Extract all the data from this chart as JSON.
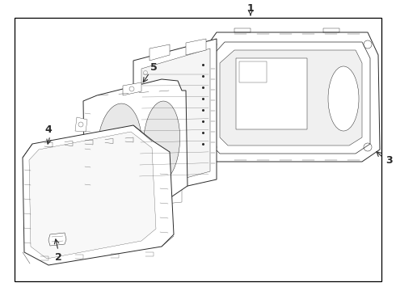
{
  "background_color": "#ffffff",
  "border_color": "#000000",
  "line_color": "#2a2a2a",
  "fig_width": 4.9,
  "fig_height": 3.6,
  "dpi": 100
}
